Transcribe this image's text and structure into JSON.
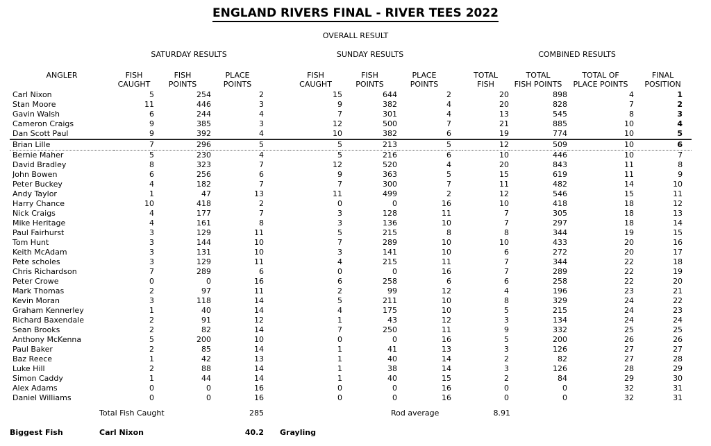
{
  "title": "ENGLAND RIVERS FINAL - RIVER TEES 2022",
  "subtitle": "OVERALL RESULT",
  "groups": {
    "saturday": "SATURDAY RESULTS",
    "sunday": "SUNDAY RESULTS",
    "combined": "COMBINED RESULTS"
  },
  "columns": {
    "angler": "ANGLER",
    "fish_caught": [
      "FISH",
      "CAUGHT"
    ],
    "fish_points": [
      "FISH",
      "POINTS"
    ],
    "place_points": [
      "PLACE",
      "POINTS"
    ],
    "total_fish": [
      "TOTAL",
      "FISH"
    ],
    "total_fish_points": [
      "TOTAL",
      "FISH POINTS"
    ],
    "total_place_points": [
      "TOTAL OF",
      "PLACE POINTS"
    ],
    "final_position": [
      "FINAL",
      "POSITION"
    ]
  },
  "rows": [
    {
      "name": "Carl Nixon",
      "sat": [
        5,
        254,
        2
      ],
      "sun": [
        15,
        644,
        2
      ],
      "total": [
        20,
        898,
        4
      ],
      "pos": 1,
      "pos_bold": true
    },
    {
      "name": "Stan Moore",
      "sat": [
        11,
        446,
        3
      ],
      "sun": [
        9,
        382,
        4
      ],
      "total": [
        20,
        828,
        7
      ],
      "pos": 2,
      "pos_bold": true
    },
    {
      "name": "Gavin Walsh",
      "sat": [
        6,
        244,
        4
      ],
      "sun": [
        7,
        301,
        4
      ],
      "total": [
        13,
        545,
        8
      ],
      "pos": 3,
      "pos_bold": true
    },
    {
      "name": "Cameron Craigs",
      "sat": [
        9,
        385,
        3
      ],
      "sun": [
        12,
        500,
        7
      ],
      "total": [
        21,
        885,
        10
      ],
      "pos": 4,
      "pos_bold": true
    },
    {
      "name": "Dan Scott Paul",
      "sat": [
        9,
        392,
        4
      ],
      "sun": [
        10,
        382,
        6
      ],
      "total": [
        19,
        774,
        10
      ],
      "pos": 5,
      "pos_bold": true
    },
    {
      "name": "Brian Lille",
      "sat": [
        7,
        296,
        5
      ],
      "sun": [
        5,
        213,
        5
      ],
      "total": [
        12,
        509,
        10
      ],
      "pos": 6,
      "pos_bold": true,
      "sep_top": true,
      "sep_bottom": true
    },
    {
      "name": "Bernie Maher",
      "sat": [
        5,
        230,
        4
      ],
      "sun": [
        5,
        216,
        6
      ],
      "total": [
        10,
        446,
        10
      ],
      "pos": 7
    },
    {
      "name": "David Bradley",
      "sat": [
        8,
        323,
        7
      ],
      "sun": [
        12,
        520,
        4
      ],
      "total": [
        20,
        843,
        11
      ],
      "pos": 8
    },
    {
      "name": "John Bowen",
      "sat": [
        6,
        256,
        6
      ],
      "sun": [
        9,
        363,
        5
      ],
      "total": [
        15,
        619,
        11
      ],
      "pos": 9
    },
    {
      "name": "Peter Buckey",
      "sat": [
        4,
        182,
        7
      ],
      "sun": [
        7,
        300,
        7
      ],
      "total": [
        11,
        482,
        14
      ],
      "pos": 10
    },
    {
      "name": "Andy Taylor",
      "sat": [
        1,
        47,
        13
      ],
      "sun": [
        11,
        499,
        2
      ],
      "total": [
        12,
        546,
        15
      ],
      "pos": 11
    },
    {
      "name": "Harry Chance",
      "sat": [
        10,
        418,
        2
      ],
      "sun": [
        0,
        0,
        16
      ],
      "total": [
        10,
        418,
        18
      ],
      "pos": 12
    },
    {
      "name": "Nick Craigs",
      "sat": [
        4,
        177,
        7
      ],
      "sun": [
        3,
        128,
        11
      ],
      "total": [
        7,
        305,
        18
      ],
      "pos": 13
    },
    {
      "name": "Mike Heritage",
      "sat": [
        4,
        161,
        8
      ],
      "sun": [
        3,
        136,
        10
      ],
      "total": [
        7,
        297,
        18
      ],
      "pos": 14
    },
    {
      "name": "Paul Fairhurst",
      "sat": [
        3,
        129,
        11
      ],
      "sun": [
        5,
        215,
        8
      ],
      "total": [
        8,
        344,
        19
      ],
      "pos": 15
    },
    {
      "name": "Tom Hunt",
      "sat": [
        3,
        144,
        10
      ],
      "sun": [
        7,
        289,
        10
      ],
      "total": [
        10,
        433,
        20
      ],
      "pos": 16
    },
    {
      "name": "Keith McAdam",
      "sat": [
        3,
        131,
        10
      ],
      "sun": [
        3,
        141,
        10
      ],
      "total": [
        6,
        272,
        20
      ],
      "pos": 17
    },
    {
      "name": "Pete scholes",
      "sat": [
        3,
        129,
        11
      ],
      "sun": [
        4,
        215,
        11
      ],
      "total": [
        7,
        344,
        22
      ],
      "pos": 18
    },
    {
      "name": "Chris Richardson",
      "sat": [
        7,
        289,
        6
      ],
      "sun": [
        0,
        0,
        16
      ],
      "total": [
        7,
        289,
        22
      ],
      "pos": 19
    },
    {
      "name": "Peter Crowe",
      "sat": [
        0,
        0,
        16
      ],
      "sun": [
        6,
        258,
        6
      ],
      "total": [
        6,
        258,
        22
      ],
      "pos": 20
    },
    {
      "name": "Mark Thomas",
      "sat": [
        2,
        97,
        11
      ],
      "sun": [
        2,
        99,
        12
      ],
      "total": [
        4,
        196,
        23
      ],
      "pos": 21
    },
    {
      "name": "Kevin Moran",
      "sat": [
        3,
        118,
        14
      ],
      "sun": [
        5,
        211,
        10
      ],
      "total": [
        8,
        329,
        24
      ],
      "pos": 22
    },
    {
      "name": "Graham Kennerley",
      "sat": [
        1,
        40,
        14
      ],
      "sun": [
        4,
        175,
        10
      ],
      "total": [
        5,
        215,
        24
      ],
      "pos": 23
    },
    {
      "name": "Richard Baxendale",
      "sat": [
        2,
        91,
        12
      ],
      "sun": [
        1,
        43,
        12
      ],
      "total": [
        3,
        134,
        24
      ],
      "pos": 24
    },
    {
      "name": "Sean Brooks",
      "sat": [
        2,
        82,
        14
      ],
      "sun": [
        7,
        250,
        11
      ],
      "total": [
        9,
        332,
        25
      ],
      "pos": 25
    },
    {
      "name": "Anthony McKenna",
      "sat": [
        5,
        200,
        10
      ],
      "sun": [
        0,
        0,
        16
      ],
      "total": [
        5,
        200,
        26
      ],
      "pos": 26
    },
    {
      "name": "Paul Baker",
      "sat": [
        2,
        85,
        14
      ],
      "sun": [
        1,
        41,
        13
      ],
      "total": [
        3,
        126,
        27
      ],
      "pos": 27
    },
    {
      "name": "Baz Reece",
      "sat": [
        1,
        42,
        13
      ],
      "sun": [
        1,
        40,
        14
      ],
      "total": [
        2,
        82,
        27
      ],
      "pos": 28
    },
    {
      "name": "Luke Hill",
      "sat": [
        2,
        88,
        14
      ],
      "sun": [
        1,
        38,
        14
      ],
      "total": [
        3,
        126,
        28
      ],
      "pos": 29
    },
    {
      "name": "Simon Caddy",
      "sat": [
        1,
        44,
        14
      ],
      "sun": [
        1,
        40,
        15
      ],
      "total": [
        2,
        84,
        29
      ],
      "pos": 30
    },
    {
      "name": "Alex Adams",
      "sat": [
        0,
        0,
        16
      ],
      "sun": [
        0,
        0,
        16
      ],
      "total": [
        0,
        0,
        32
      ],
      "pos": 31
    },
    {
      "name": "Daniel Williams",
      "sat": [
        0,
        0,
        16
      ],
      "sun": [
        0,
        0,
        16
      ],
      "total": [
        0,
        0,
        32
      ],
      "pos": 31
    }
  ],
  "summary": {
    "total_fish_label": "Total Fish Caught",
    "total_fish_value": "285",
    "rod_average_label": "Rod average",
    "rod_average_value": "8.91",
    "biggest_fish_label": "Biggest Fish",
    "biggest_fish_angler": "Carl Nixon",
    "biggest_fish_weight": "40.2",
    "biggest_fish_species": "Grayling"
  },
  "colors": {
    "text": "#000000",
    "background": "#ffffff"
  }
}
